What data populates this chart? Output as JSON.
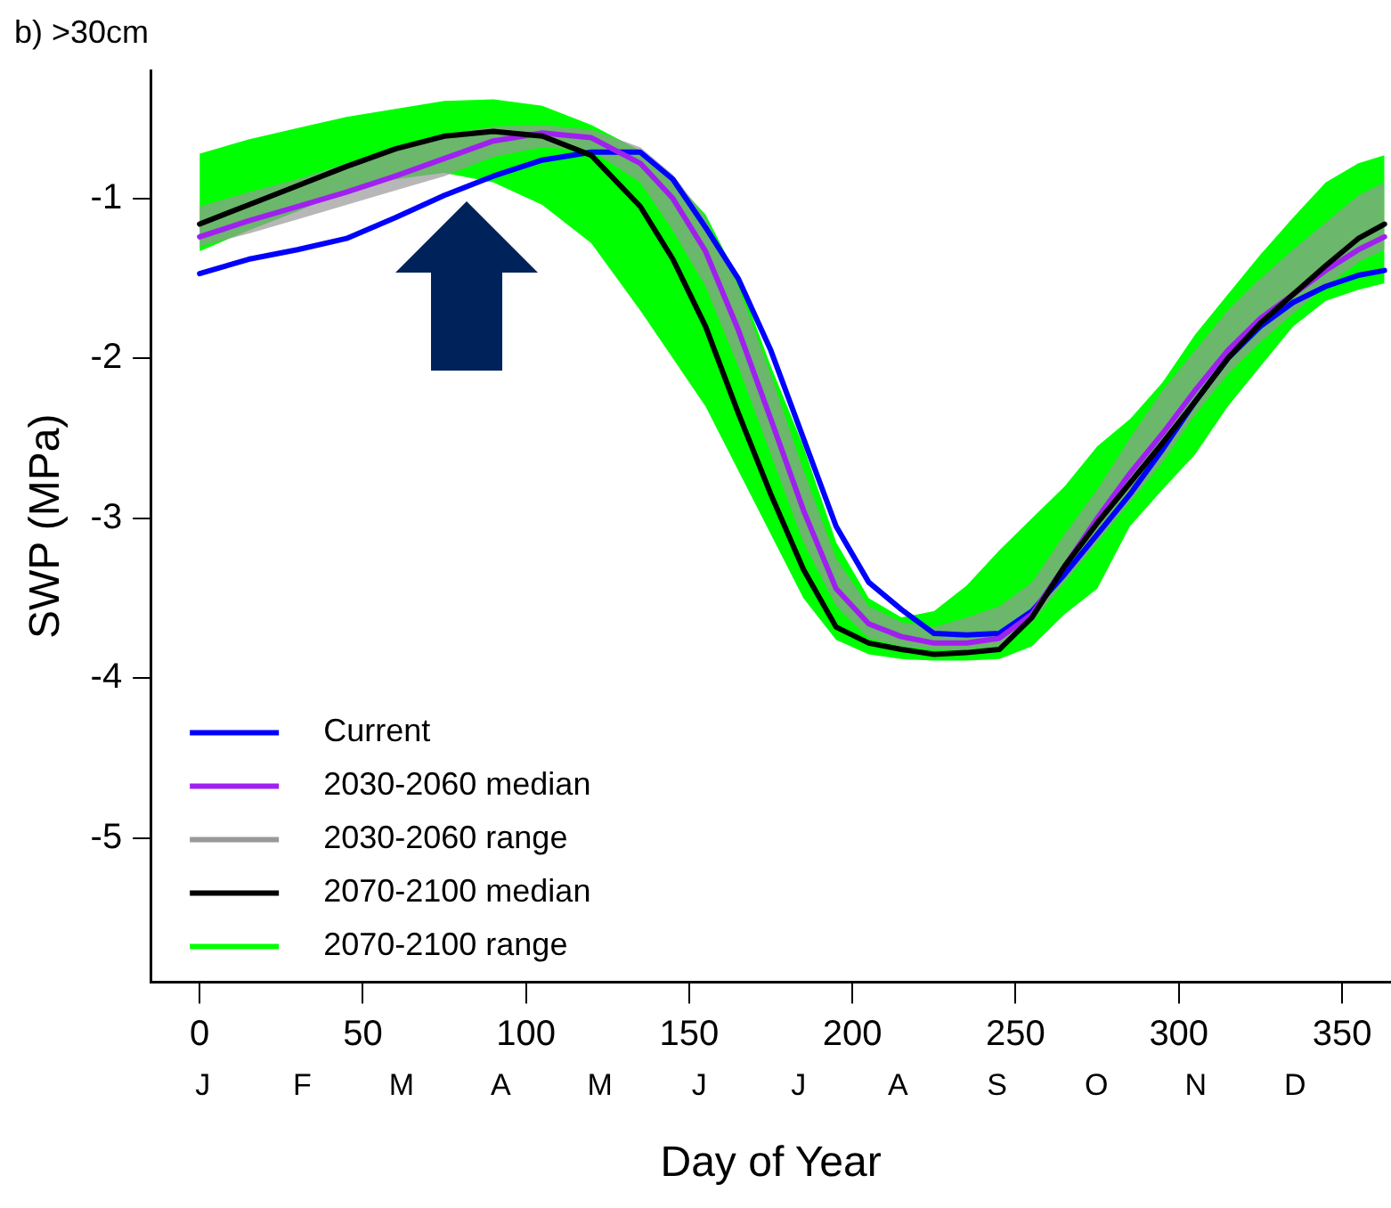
{
  "chart_data": {
    "type": "line",
    "title": "b) >30cm",
    "xlabel": "Day of Year",
    "ylabel": "SWP (MPa)",
    "x": [
      0,
      15,
      30,
      45,
      60,
      75,
      90,
      105,
      120,
      135,
      145,
      155,
      165,
      175,
      185,
      195,
      205,
      215,
      225,
      235,
      245,
      255,
      265,
      275,
      285,
      295,
      305,
      315,
      325,
      335,
      345,
      355,
      363
    ],
    "xlim": [
      -15,
      365
    ],
    "xticks": [
      0,
      50,
      100,
      150,
      200,
      250,
      300,
      350
    ],
    "ylim": [
      -5.9,
      -0.2
    ],
    "yticks": [
      -5,
      -4,
      -3,
      -2,
      -1
    ],
    "annotations": [
      "J",
      "F",
      "M",
      "A",
      "M",
      "J",
      "J",
      "A",
      "S",
      "O",
      "N",
      "D"
    ],
    "grid": false,
    "legend": "bottom left",
    "line_style": "solid",
    "marker": "none",
    "series": [
      {
        "name": "Current",
        "type": "line",
        "color": "#0000ff",
        "values": [
          -1.47,
          -1.38,
          -1.32,
          -1.25,
          -1.12,
          -0.98,
          -0.86,
          -0.76,
          -0.71,
          -0.71,
          -0.88,
          -1.18,
          -1.5,
          -1.95,
          -2.5,
          -3.05,
          -3.4,
          -3.57,
          -3.72,
          -3.73,
          -3.72,
          -3.58,
          -3.35,
          -3.1,
          -2.85,
          -2.57,
          -2.27,
          -2.0,
          -1.8,
          -1.65,
          -1.55,
          -1.48,
          -1.45
        ]
      },
      {
        "name": "2030-2060 median",
        "color": "#a020f0",
        "values": [
          -1.24,
          -1.14,
          -1.05,
          -0.96,
          -0.86,
          -0.75,
          -0.64,
          -0.59,
          -0.62,
          -0.78,
          -1.0,
          -1.33,
          -1.82,
          -2.38,
          -2.95,
          -3.44,
          -3.66,
          -3.74,
          -3.78,
          -3.78,
          -3.75,
          -3.6,
          -3.3,
          -3.0,
          -2.72,
          -2.47,
          -2.2,
          -1.95,
          -1.75,
          -1.6,
          -1.45,
          -1.32,
          -1.24
        ]
      },
      {
        "name": "2030-2060 range",
        "type": "area",
        "color": "#999999",
        "values": [
          null,
          null,
          null,
          null,
          null,
          null,
          null,
          null,
          null,
          null,
          null,
          null,
          null,
          null,
          null,
          null,
          null,
          null,
          null,
          null,
          null,
          null,
          null,
          null,
          null,
          null,
          null,
          null,
          null,
          null,
          null,
          null,
          null
        ],
        "lower": [
          -1.3,
          -1.22,
          -1.13,
          -1.04,
          -0.95,
          -0.86,
          -0.74,
          -0.68,
          -0.7,
          -0.9,
          -1.2,
          -1.55,
          -2.05,
          -2.6,
          -3.15,
          -3.55,
          -3.75,
          -3.8,
          -3.82,
          -3.82,
          -3.8,
          -3.65,
          -3.4,
          -3.15,
          -2.9,
          -2.65,
          -2.35,
          -2.1,
          -1.9,
          -1.72,
          -1.55,
          -1.4,
          -1.32
        ],
        "upper": [
          -1.05,
          -0.96,
          -0.88,
          -0.78,
          -0.68,
          -0.6,
          -0.55,
          -0.54,
          -0.57,
          -0.68,
          -0.85,
          -1.12,
          -1.55,
          -2.1,
          -2.7,
          -3.25,
          -3.55,
          -3.65,
          -3.68,
          -3.62,
          -3.55,
          -3.4,
          -3.1,
          -2.82,
          -2.5,
          -2.2,
          -1.95,
          -1.7,
          -1.5,
          -1.32,
          -1.15,
          -0.98,
          -0.9
        ]
      },
      {
        "name": "2070-2100 median",
        "type": "line",
        "color": "#000000",
        "values": [
          -1.16,
          -1.04,
          -0.92,
          -0.8,
          -0.69,
          -0.61,
          -0.58,
          -0.61,
          -0.73,
          -1.05,
          -1.38,
          -1.8,
          -2.34,
          -2.85,
          -3.32,
          -3.68,
          -3.78,
          -3.82,
          -3.85,
          -3.84,
          -3.82,
          -3.62,
          -3.3,
          -3.03,
          -2.78,
          -2.53,
          -2.27,
          -2.0,
          -1.78,
          -1.6,
          -1.42,
          -1.25,
          -1.16
        ]
      },
      {
        "name": "2070-2100 range",
        "type": "area",
        "color": "#00ff00",
        "values": [
          null,
          null,
          null,
          null,
          null,
          null,
          null,
          null,
          null,
          null,
          null,
          null,
          null,
          null,
          null,
          null,
          null,
          null,
          null,
          null,
          null,
          null,
          null,
          null,
          null,
          null,
          null,
          null,
          null,
          null,
          null,
          null,
          null
        ],
        "lower": [
          -1.33,
          -1.2,
          -1.08,
          -0.95,
          -0.88,
          -0.84,
          -0.9,
          -1.04,
          -1.28,
          -1.7,
          -2.0,
          -2.3,
          -2.7,
          -3.1,
          -3.5,
          -3.76,
          -3.85,
          -3.88,
          -3.89,
          -3.89,
          -3.88,
          -3.8,
          -3.6,
          -3.44,
          -3.05,
          -2.82,
          -2.6,
          -2.3,
          -2.05,
          -1.8,
          -1.64,
          -1.57,
          -1.53
        ],
        "upper": [
          -0.72,
          -0.63,
          -0.56,
          -0.49,
          -0.44,
          -0.39,
          -0.38,
          -0.42,
          -0.54,
          -0.7,
          -0.88,
          -1.1,
          -1.5,
          -2.05,
          -2.55,
          -3.15,
          -3.5,
          -3.62,
          -3.58,
          -3.42,
          -3.2,
          -3.0,
          -2.8,
          -2.55,
          -2.38,
          -2.15,
          -1.85,
          -1.6,
          -1.35,
          -1.12,
          -0.9,
          -0.78,
          -0.73
        ]
      }
    ]
  }
}
